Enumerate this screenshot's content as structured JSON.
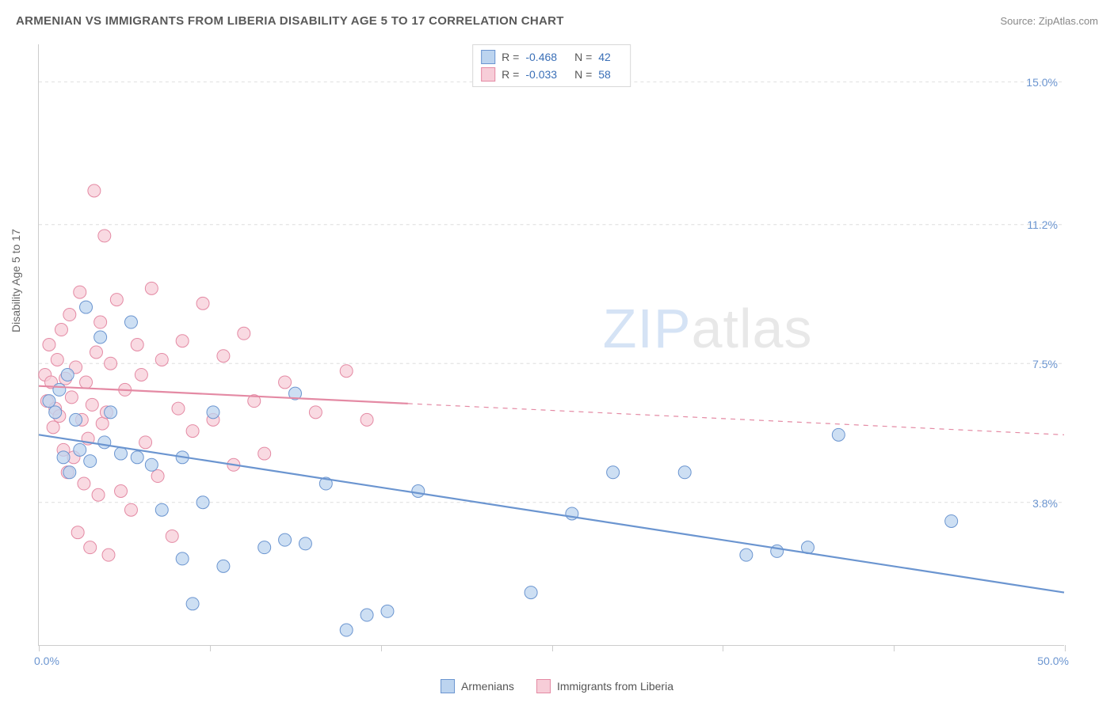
{
  "header": {
    "title": "ARMENIAN VS IMMIGRANTS FROM LIBERIA DISABILITY AGE 5 TO 17 CORRELATION CHART",
    "source": "Source: ZipAtlas.com"
  },
  "axes": {
    "y_label": "Disability Age 5 to 17",
    "y_ticks": [
      3.8,
      7.5,
      11.2,
      15.0
    ],
    "y_min": 0.0,
    "y_max": 16.0,
    "x_min_label": "0.0%",
    "x_max_label": "50.0%",
    "x_min": 0.0,
    "x_max": 50.0,
    "x_tick_positions": [
      0,
      8.33,
      16.67,
      25.0,
      33.33,
      41.67,
      50.0
    ]
  },
  "series": {
    "armenians": {
      "label": "Armenians",
      "fill": "#bcd4ef",
      "stroke": "#6b95d0",
      "r_value": "-0.468",
      "n_value": "42",
      "regression": {
        "x1": 0.0,
        "y1": 5.6,
        "x2": 50.0,
        "y2": 1.4,
        "solid_until_x": 50.0
      },
      "points": [
        [
          0.5,
          6.5
        ],
        [
          0.8,
          6.2
        ],
        [
          1.0,
          6.8
        ],
        [
          1.2,
          5.0
        ],
        [
          1.4,
          7.2
        ],
        [
          1.5,
          4.6
        ],
        [
          1.8,
          6.0
        ],
        [
          2.0,
          5.2
        ],
        [
          2.3,
          9.0
        ],
        [
          2.5,
          4.9
        ],
        [
          3.0,
          8.2
        ],
        [
          3.2,
          5.4
        ],
        [
          3.5,
          6.2
        ],
        [
          4.0,
          5.1
        ],
        [
          4.5,
          8.6
        ],
        [
          4.8,
          5.0
        ],
        [
          5.5,
          4.8
        ],
        [
          6.0,
          3.6
        ],
        [
          7.0,
          2.3
        ],
        [
          7.0,
          5.0
        ],
        [
          7.5,
          1.1
        ],
        [
          8.0,
          3.8
        ],
        [
          8.5,
          6.2
        ],
        [
          9.0,
          2.1
        ],
        [
          11.0,
          2.6
        ],
        [
          12.0,
          2.8
        ],
        [
          12.5,
          6.7
        ],
        [
          13.0,
          2.7
        ],
        [
          14.0,
          4.3
        ],
        [
          15.0,
          0.4
        ],
        [
          16.0,
          0.8
        ],
        [
          17.0,
          0.9
        ],
        [
          18.5,
          4.1
        ],
        [
          24.0,
          1.4
        ],
        [
          26.0,
          3.5
        ],
        [
          28.0,
          4.6
        ],
        [
          31.5,
          4.6
        ],
        [
          34.5,
          2.4
        ],
        [
          36.0,
          2.5
        ],
        [
          37.5,
          2.6
        ],
        [
          39.0,
          5.6
        ],
        [
          44.5,
          3.3
        ]
      ]
    },
    "liberia": {
      "label": "Immigrants from Liberia",
      "fill": "#f7cdd8",
      "stroke": "#e48aa4",
      "r_value": "-0.033",
      "n_value": "58",
      "regression": {
        "x1": 0.0,
        "y1": 6.9,
        "x2": 50.0,
        "y2": 5.6,
        "solid_until_x": 18.0
      },
      "points": [
        [
          0.3,
          7.2
        ],
        [
          0.4,
          6.5
        ],
        [
          0.5,
          8.0
        ],
        [
          0.6,
          7.0
        ],
        [
          0.7,
          5.8
        ],
        [
          0.8,
          6.3
        ],
        [
          0.9,
          7.6
        ],
        [
          1.0,
          6.1
        ],
        [
          1.1,
          8.4
        ],
        [
          1.2,
          5.2
        ],
        [
          1.3,
          7.1
        ],
        [
          1.4,
          4.6
        ],
        [
          1.5,
          8.8
        ],
        [
          1.6,
          6.6
        ],
        [
          1.7,
          5.0
        ],
        [
          1.8,
          7.4
        ],
        [
          1.9,
          3.0
        ],
        [
          2.0,
          9.4
        ],
        [
          2.1,
          6.0
        ],
        [
          2.2,
          4.3
        ],
        [
          2.3,
          7.0
        ],
        [
          2.4,
          5.5
        ],
        [
          2.5,
          2.6
        ],
        [
          2.6,
          6.4
        ],
        [
          2.7,
          12.1
        ],
        [
          2.8,
          7.8
        ],
        [
          2.9,
          4.0
        ],
        [
          3.0,
          8.6
        ],
        [
          3.1,
          5.9
        ],
        [
          3.2,
          10.9
        ],
        [
          3.3,
          6.2
        ],
        [
          3.4,
          2.4
        ],
        [
          3.5,
          7.5
        ],
        [
          3.8,
          9.2
        ],
        [
          4.0,
          4.1
        ],
        [
          4.2,
          6.8
        ],
        [
          4.5,
          3.6
        ],
        [
          4.8,
          8.0
        ],
        [
          5.0,
          7.2
        ],
        [
          5.2,
          5.4
        ],
        [
          5.5,
          9.5
        ],
        [
          5.8,
          4.5
        ],
        [
          6.0,
          7.6
        ],
        [
          6.5,
          2.9
        ],
        [
          6.8,
          6.3
        ],
        [
          7.0,
          8.1
        ],
        [
          7.5,
          5.7
        ],
        [
          8.0,
          9.1
        ],
        [
          8.5,
          6.0
        ],
        [
          9.0,
          7.7
        ],
        [
          9.5,
          4.8
        ],
        [
          10.0,
          8.3
        ],
        [
          10.5,
          6.5
        ],
        [
          11.0,
          5.1
        ],
        [
          12.0,
          7.0
        ],
        [
          13.5,
          6.2
        ],
        [
          15.0,
          7.3
        ],
        [
          16.0,
          6.0
        ]
      ]
    }
  },
  "style": {
    "background": "#ffffff",
    "grid_color": "#dddddd",
    "axis_color": "#cccccc",
    "tick_label_color": "#6b95d0",
    "marker_radius": 8,
    "marker_opacity": 0.75,
    "line_width": 2.2
  },
  "watermark": {
    "part1": "ZIP",
    "part2": "atlas"
  },
  "legend_labels": {
    "R": "R =",
    "N": "N ="
  }
}
